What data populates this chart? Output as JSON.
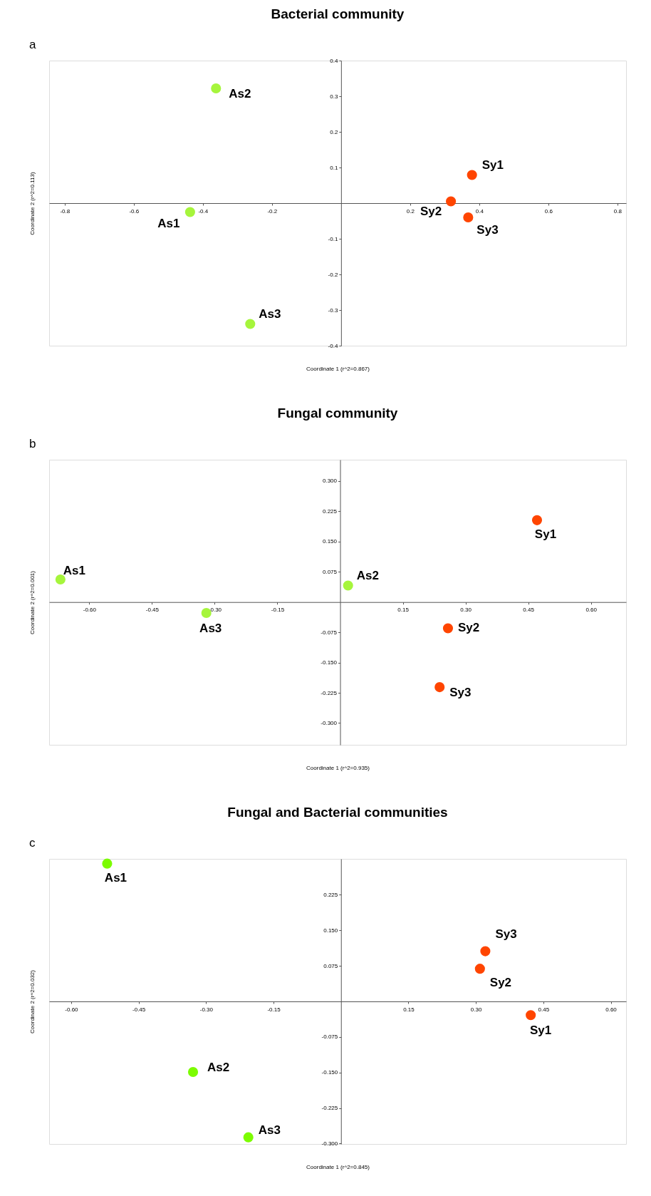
{
  "chart_data": [
    {
      "type": "scatter",
      "title": "Bacterial community",
      "xlabel": "Coordinate 1 (r^2=0.867)",
      "ylabel": "Coordinate 2 (r^2=0.113)",
      "marker": "circle",
      "grid": false,
      "legend": false,
      "xlim": [
        -0.845,
        0.825
      ],
      "ylim": [
        -0.4,
        0.4
      ],
      "xticks": [
        -0.8,
        -0.6,
        -0.4,
        -0.2,
        0.2,
        0.4,
        0.6,
        0.8
      ],
      "yticks": [
        -0.4,
        -0.3,
        -0.2,
        -0.1,
        0.1,
        0.2,
        0.3,
        0.4
      ],
      "series": [
        {
          "color": "#a6f53c",
          "x": [
            -0.437,
            -0.362,
            -0.263
          ],
          "values": [
            -0.025,
            0.322,
            -0.339
          ]
        },
        {
          "color": "#ff4500",
          "x": [
            0.379,
            0.318,
            0.368
          ],
          "values": [
            0.079,
            0.005,
            -0.04
          ]
        }
      ],
      "annotations": [
        "a",
        {
          "text": "As1",
          "x": -0.437,
          "y": -0.025
        },
        {
          "text": "As2",
          "x": -0.362,
          "y": 0.322
        },
        {
          "text": "As3",
          "x": -0.263,
          "y": -0.339
        },
        {
          "text": "Sy1",
          "x": 0.379,
          "y": 0.079
        },
        {
          "text": "Sy2",
          "x": 0.318,
          "y": 0.005
        },
        {
          "text": "Sy3",
          "x": 0.368,
          "y": -0.04
        }
      ]
    },
    {
      "type": "scatter",
      "title": "Fungal community",
      "xlabel": "Coordinate 1 (r^2=0.935)",
      "ylabel": "Coordinate 2 (r^2=0.001)",
      "marker": "circle",
      "grid": false,
      "legend": false,
      "xlim": [
        -0.696,
        0.684
      ],
      "ylim": [
        -0.354,
        0.353
      ],
      "xticks": [
        {
          "value": -0.6,
          "label": "-0.60"
        },
        {
          "value": -0.45,
          "label": "-0.45"
        },
        {
          "value": -0.3,
          "label": "-0.30"
        },
        {
          "value": -0.15,
          "label": "-0.15"
        },
        {
          "value": 0.15,
          "label": "0.15"
        },
        {
          "value": 0.3,
          "label": "0.30"
        },
        {
          "value": 0.45,
          "label": "0.45"
        },
        {
          "value": 0.6,
          "label": "0.60"
        }
      ],
      "yticks": [
        {
          "value": -0.3,
          "label": "-0.300"
        },
        {
          "value": -0.225,
          "label": "-0.225"
        },
        {
          "value": -0.15,
          "label": "-0.150"
        },
        {
          "value": -0.075,
          "label": "-0.075"
        },
        {
          "value": 0.075,
          "label": "0.075"
        },
        {
          "value": 0.15,
          "label": "0.150"
        },
        {
          "value": 0.225,
          "label": "0.225"
        },
        {
          "value": 0.3,
          "label": "0.300"
        }
      ],
      "series": [
        {
          "color": "#a6f53c",
          "x": [
            -0.669,
            0.019,
            -0.32
          ],
          "values": [
            0.056,
            0.041,
            -0.027
          ]
        },
        {
          "color": "#ff4500",
          "x": [
            0.471,
            0.258,
            0.238
          ],
          "values": [
            0.203,
            -0.065,
            -0.211
          ]
        }
      ],
      "annotations": [
        "b",
        {
          "text": "As1",
          "x": -0.669,
          "y": 0.056
        },
        {
          "text": "As2",
          "x": 0.019,
          "y": 0.041
        },
        {
          "text": "As3",
          "x": -0.32,
          "y": -0.027
        },
        {
          "text": "Sy1",
          "x": 0.471,
          "y": 0.203
        },
        {
          "text": "Sy2",
          "x": 0.258,
          "y": -0.065
        },
        {
          "text": "Sy3",
          "x": 0.238,
          "y": -0.211
        }
      ]
    },
    {
      "type": "scatter",
      "title": "Fungal and Bacterial communities",
      "xlabel": "Coordinate 1 (r^2=0.845)",
      "ylabel": "Coordinate 2 (r^2=0.032)",
      "marker": "circle",
      "grid": false,
      "legend": false,
      "xlim": [
        -0.649,
        0.634
      ],
      "ylim": [
        -0.301,
        0.301
      ],
      "xticks": [
        {
          "value": -0.6,
          "label": "-0.60"
        },
        {
          "value": -0.45,
          "label": "-0.45"
        },
        {
          "value": -0.3,
          "label": "-0.30"
        },
        {
          "value": -0.15,
          "label": "-0.15"
        },
        {
          "value": 0.15,
          "label": "0.15"
        },
        {
          "value": 0.3,
          "label": "0.30"
        },
        {
          "value": 0.45,
          "label": "0.45"
        },
        {
          "value": 0.6,
          "label": "0.60"
        }
      ],
      "yticks": [
        {
          "value": -0.3,
          "label": "-0.300"
        },
        {
          "value": -0.225,
          "label": "-0.225"
        },
        {
          "value": -0.15,
          "label": "-0.150"
        },
        {
          "value": -0.075,
          "label": "-0.075"
        },
        {
          "value": 0.075,
          "label": "0.075"
        },
        {
          "value": 0.15,
          "label": "0.150"
        },
        {
          "value": 0.225,
          "label": "0.225"
        }
      ],
      "series": [
        {
          "color": "#7cfc00",
          "x": [
            -0.52,
            -0.329,
            -0.206
          ],
          "values": [
            0.291,
            -0.149,
            -0.287
          ]
        },
        {
          "color": "#ff4500",
          "x": [
            0.422,
            0.309,
            0.321
          ],
          "values": [
            -0.029,
            0.069,
            0.106
          ]
        }
      ],
      "annotations": [
        "c",
        {
          "text": "As1",
          "x": -0.52,
          "y": 0.291
        },
        {
          "text": "As2",
          "x": -0.329,
          "y": -0.149
        },
        {
          "text": "As3",
          "x": -0.206,
          "y": -0.287
        },
        {
          "text": "Sy1",
          "x": 0.422,
          "y": -0.029
        },
        {
          "text": "Sy2",
          "x": 0.309,
          "y": 0.069
        },
        {
          "text": "Sy3",
          "x": 0.321,
          "y": 0.106
        }
      ]
    }
  ]
}
